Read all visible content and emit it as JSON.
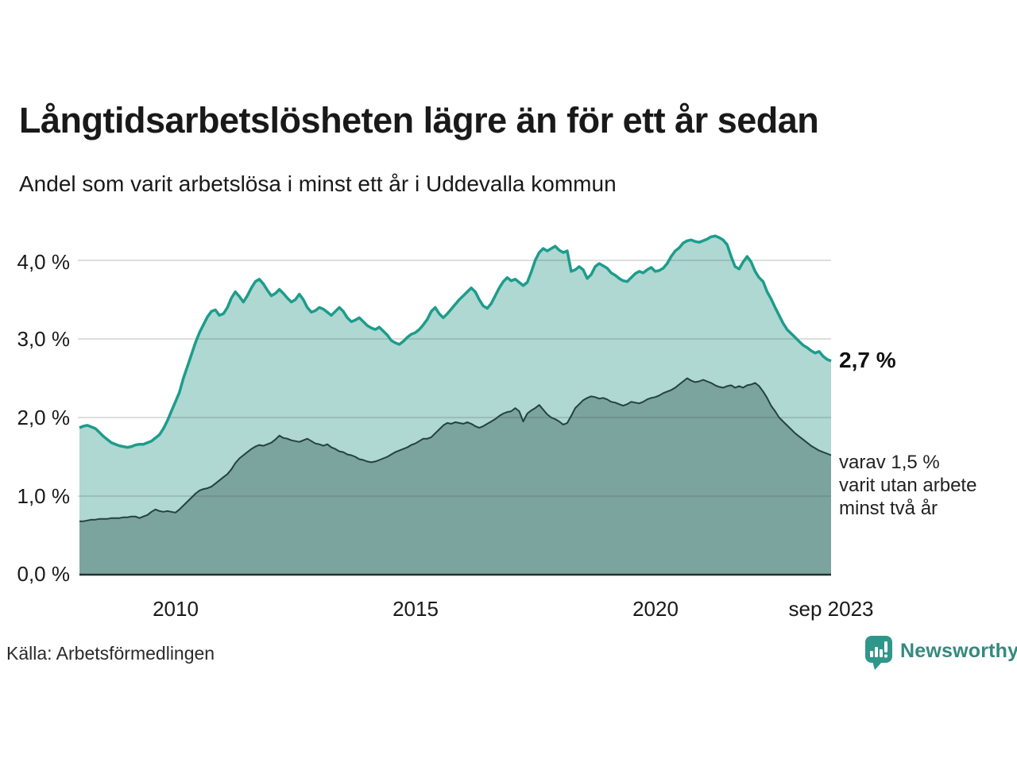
{
  "title": "Långtidsarbetslösheten lägre än för ett år sedan",
  "subtitle": "Andel som varit arbetslösa i minst ett år i Uddevalla kommun",
  "source": "Källa: Arbetsförmedlingen",
  "brand": {
    "name": "Newsworthy",
    "color": "#35897f"
  },
  "annotations": {
    "latest_total": "2,7 %",
    "secondary": [
      "varav 1,5 %",
      "varit utan arbete",
      "minst två år"
    ]
  },
  "chart_data": {
    "type": "area",
    "title": "Långtidsarbetslösheten lägre än för ett år sedan",
    "subtitle": "Andel som varit arbetslösa i minst ett år i Uddevalla kommun",
    "x_start": "2008-01",
    "x_end": "2023-09",
    "x_frequency": "monthly",
    "grid": true,
    "ylim": [
      0,
      4.45
    ],
    "y_ticks": [
      0,
      1,
      2,
      3,
      4
    ],
    "y_tick_labels": [
      "0,0 %",
      "1,0 %",
      "2,0 %",
      "3,0 %",
      "4,0 %"
    ],
    "x_ticks": [
      {
        "label": "2010",
        "index": 24
      },
      {
        "label": "2015",
        "index": 84
      },
      {
        "label": "2020",
        "index": 144
      },
      {
        "label": "sep 2023",
        "index": 188
      }
    ],
    "colors": {
      "grid_overlay": "rgba(70,70,70,0.18)",
      "baseline": "#22302e"
    },
    "series": [
      {
        "name": "Andel som varit arbetslösa minst ett år",
        "latest_value": 2.7,
        "line_color": "#1d9c8c",
        "line_width": 3.5,
        "fill_color": "#aed8d1",
        "values": [
          1.87,
          1.89,
          1.9,
          1.88,
          1.86,
          1.81,
          1.76,
          1.72,
          1.68,
          1.66,
          1.64,
          1.63,
          1.62,
          1.63,
          1.65,
          1.66,
          1.66,
          1.68,
          1.7,
          1.74,
          1.78,
          1.86,
          1.96,
          2.08,
          2.2,
          2.32,
          2.5,
          2.65,
          2.8,
          2.95,
          3.08,
          3.18,
          3.28,
          3.35,
          3.37,
          3.3,
          3.32,
          3.4,
          3.52,
          3.6,
          3.54,
          3.47,
          3.55,
          3.65,
          3.73,
          3.76,
          3.7,
          3.62,
          3.55,
          3.58,
          3.63,
          3.58,
          3.52,
          3.47,
          3.5,
          3.57,
          3.5,
          3.4,
          3.34,
          3.36,
          3.4,
          3.38,
          3.34,
          3.3,
          3.35,
          3.4,
          3.35,
          3.27,
          3.22,
          3.24,
          3.27,
          3.22,
          3.17,
          3.14,
          3.12,
          3.15,
          3.1,
          3.05,
          2.98,
          2.95,
          2.93,
          2.97,
          3.02,
          3.06,
          3.08,
          3.12,
          3.18,
          3.25,
          3.35,
          3.4,
          3.32,
          3.27,
          3.32,
          3.38,
          3.44,
          3.5,
          3.55,
          3.6,
          3.65,
          3.6,
          3.5,
          3.42,
          3.39,
          3.45,
          3.55,
          3.65,
          3.73,
          3.78,
          3.74,
          3.76,
          3.72,
          3.68,
          3.72,
          3.85,
          4.0,
          4.1,
          4.15,
          4.12,
          4.15,
          4.18,
          4.13,
          4.1,
          4.12,
          3.86,
          3.88,
          3.92,
          3.88,
          3.77,
          3.82,
          3.92,
          3.96,
          3.93,
          3.9,
          3.84,
          3.81,
          3.77,
          3.74,
          3.73,
          3.78,
          3.83,
          3.86,
          3.84,
          3.88,
          3.91,
          3.86,
          3.87,
          3.9,
          3.96,
          4.05,
          4.12,
          4.16,
          4.22,
          4.25,
          4.26,
          4.24,
          4.23,
          4.25,
          4.27,
          4.3,
          4.31,
          4.29,
          4.26,
          4.2,
          4.05,
          3.92,
          3.89,
          3.98,
          4.05,
          3.98,
          3.86,
          3.78,
          3.73,
          3.6,
          3.51,
          3.4,
          3.3,
          3.2,
          3.12,
          3.07,
          3.02,
          2.97,
          2.92,
          2.89,
          2.85,
          2.82,
          2.84,
          2.78,
          2.74,
          2.72
        ]
      },
      {
        "name": "varav utan arbete minst två år",
        "latest_value": 1.5,
        "line_color": "#24423e",
        "line_width": 2,
        "fill_color": "#7ba49e",
        "values": [
          0.68,
          0.68,
          0.69,
          0.7,
          0.7,
          0.71,
          0.71,
          0.71,
          0.72,
          0.72,
          0.72,
          0.73,
          0.73,
          0.74,
          0.74,
          0.72,
          0.74,
          0.76,
          0.8,
          0.83,
          0.81,
          0.8,
          0.81,
          0.8,
          0.79,
          0.83,
          0.88,
          0.93,
          0.98,
          1.03,
          1.07,
          1.09,
          1.1,
          1.12,
          1.16,
          1.2,
          1.24,
          1.28,
          1.34,
          1.42,
          1.48,
          1.52,
          1.56,
          1.6,
          1.63,
          1.65,
          1.64,
          1.66,
          1.68,
          1.72,
          1.77,
          1.74,
          1.73,
          1.71,
          1.7,
          1.69,
          1.71,
          1.73,
          1.7,
          1.67,
          1.66,
          1.64,
          1.66,
          1.62,
          1.6,
          1.57,
          1.56,
          1.53,
          1.52,
          1.5,
          1.47,
          1.46,
          1.44,
          1.43,
          1.44,
          1.46,
          1.48,
          1.5,
          1.53,
          1.56,
          1.58,
          1.6,
          1.62,
          1.65,
          1.67,
          1.7,
          1.73,
          1.73,
          1.75,
          1.8,
          1.85,
          1.9,
          1.93,
          1.92,
          1.94,
          1.93,
          1.92,
          1.94,
          1.92,
          1.89,
          1.87,
          1.89,
          1.92,
          1.95,
          1.98,
          2.02,
          2.05,
          2.07,
          2.08,
          2.12,
          2.08,
          1.95,
          2.05,
          2.09,
          2.12,
          2.16,
          2.1,
          2.04,
          2.0,
          1.98,
          1.95,
          1.91,
          1.93,
          2.02,
          2.12,
          2.17,
          2.22,
          2.25,
          2.27,
          2.26,
          2.24,
          2.25,
          2.23,
          2.2,
          2.19,
          2.17,
          2.15,
          2.17,
          2.2,
          2.19,
          2.18,
          2.2,
          2.23,
          2.25,
          2.26,
          2.28,
          2.31,
          2.33,
          2.35,
          2.38,
          2.42,
          2.46,
          2.5,
          2.47,
          2.45,
          2.46,
          2.48,
          2.46,
          2.44,
          2.41,
          2.39,
          2.38,
          2.4,
          2.41,
          2.38,
          2.4,
          2.38,
          2.41,
          2.42,
          2.44,
          2.4,
          2.33,
          2.25,
          2.15,
          2.08,
          2.0,
          1.95,
          1.9,
          1.85,
          1.8,
          1.76,
          1.72,
          1.68,
          1.64,
          1.61,
          1.58,
          1.56,
          1.54,
          1.52
        ]
      }
    ]
  }
}
